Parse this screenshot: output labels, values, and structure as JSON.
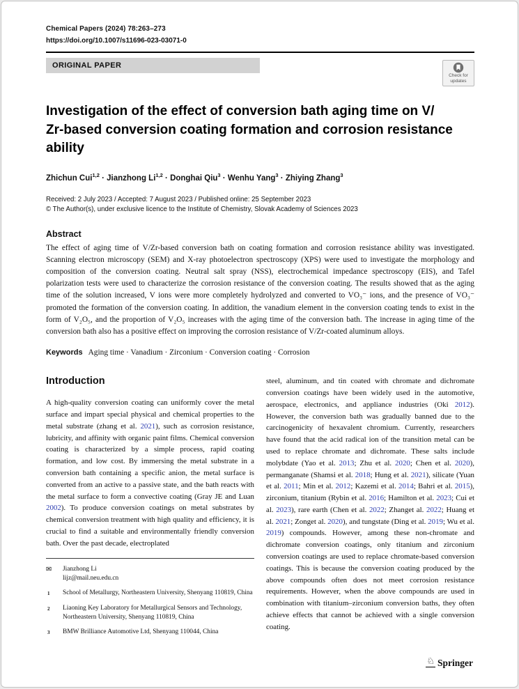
{
  "colors": {
    "link_blue": "#2b3cb0",
    "banner_gray": "#d2d2d2"
  },
  "header": {
    "journal_line": "Chemical Papers (2024) 78:263–273",
    "doi": "https://doi.org/10.1007/s11696-023-03071-0",
    "section_label": "ORIGINAL PAPER",
    "check_updates_line1": "Check for",
    "check_updates_line2": "updates"
  },
  "article": {
    "title_line1": "Investigation of the effect of conversion bath aging time on V/",
    "title_line2": "Zr-based conversion coating formation and corrosion resistance ability",
    "authors_segments": [
      {
        "t": "Zhichun Cui"
      },
      {
        "t": "1,2",
        "c": "sup"
      },
      {
        "t": " · "
      },
      {
        "t": "Jianzhong Li"
      },
      {
        "t": "1,2",
        "c": "sup"
      },
      {
        "t": " · "
      },
      {
        "t": "Donghai Qiu"
      },
      {
        "t": "3",
        "c": "sup"
      },
      {
        "t": " · "
      },
      {
        "t": "Wenhu Yang"
      },
      {
        "t": "3",
        "c": "sup"
      },
      {
        "t": " · "
      },
      {
        "t": "Zhiying Zhang"
      },
      {
        "t": "3",
        "c": "sup"
      }
    ],
    "received_line": "Received: 2 July 2023 / Accepted: 7 August 2023 / Published online: 25 September 2023",
    "copyright_line": "© The Author(s), under exclusive licence to the Institute of Chemistry, Slovak Academy of Sciences 2023"
  },
  "abstract": {
    "heading": "Abstract",
    "body": "The effect of aging time of V/Zr-based conversion bath on coating formation and corrosion resistance ability was investigated. Scanning electron microscopy (SEM) and X-ray photoelectron spectroscopy (XPS) were used to investigate the morphology and composition of the conversion coating. Neutral salt spray (NSS), electrochemical impedance spectroscopy (EIS), and Tafel polarization tests were used to characterize the corrosion resistance of the conversion coating. The results showed that as the aging time of the solution increased, V ions were more completely hydrolyzed and converted to VO₃⁻ ions, and the presence of VO₃⁻ promoted the formation of the conversion coating. In addition, the vanadium element in the conversion coating tends to exist in the form of V₂O₅, and the proportion of V₂O₅ increases with the aging time of the conversion bath. The increase in aging time of the conversion bath also has a positive effect on improving the corrosion resistance of V/Zr-coated aluminum alloys."
  },
  "keywords": {
    "label": "Keywords",
    "value": "Aging time · Vanadium · Zirconium · Conversion coating · Corrosion"
  },
  "introduction": {
    "heading": "Introduction",
    "left_segments": [
      {
        "t": "A high-quality conversion coating can uniformly cover the metal surface and impart special physical and chemical properties to the metal substrate (zhang et al. "
      },
      {
        "t": "2021",
        "c": "link"
      },
      {
        "t": "), such as corrosion resistance, lubricity, and affinity with organic paint films. Chemical conversion coating is characterized by a simple process, rapid coating formation, and low cost. By immersing the metal substrate in a conversion bath containing a specific anion, the metal surface is converted from an active to a passive state, and the bath reacts with the metal surface to form a convective coating (Gray JE and Luan "
      },
      {
        "t": "2002",
        "c": "link"
      },
      {
        "t": "). To produce conversion coatings on metal substrates by chemical conversion treatment with high quality and efficiency, it is crucial to find a suitable and environmentally friendly conversion bath. Over the past decade, electroplated"
      }
    ],
    "right_segments": [
      {
        "t": "steel, aluminum, and tin coated with chromate and dichromate conversion coatings have been widely used in the automotive, aerospace, electronics, and appliance industries (Oki "
      },
      {
        "t": "2012",
        "c": "link"
      },
      {
        "t": "). However, the conversion bath was gradually banned due to the carcinogenicity of hexavalent chromium. Currently, researchers have found that the acid radical ion of the transition metal can be used to replace chromate and dichromate. These salts include molybdate (Yao et al. "
      },
      {
        "t": "2013",
        "c": "link"
      },
      {
        "t": "; Zhu et al. "
      },
      {
        "t": "2020",
        "c": "link"
      },
      {
        "t": "; Chen et al. "
      },
      {
        "t": "2020",
        "c": "link"
      },
      {
        "t": "), permanganate (Shamsi et al. "
      },
      {
        "t": "2018",
        "c": "link"
      },
      {
        "t": "; Hung et al. "
      },
      {
        "t": "2021",
        "c": "link"
      },
      {
        "t": "), silicate (Yuan et al. "
      },
      {
        "t": "2011",
        "c": "link"
      },
      {
        "t": "; Min et al. "
      },
      {
        "t": "2012",
        "c": "link"
      },
      {
        "t": "; Kazemi et al. "
      },
      {
        "t": "2014",
        "c": "link"
      },
      {
        "t": "; Bahri et al. "
      },
      {
        "t": "2015",
        "c": "link"
      },
      {
        "t": "), zirconium, titanium (Rybin et al. "
      },
      {
        "t": "2016",
        "c": "link"
      },
      {
        "t": "; Hamilton et al. "
      },
      {
        "t": "2023",
        "c": "link"
      },
      {
        "t": "; Cui et al. "
      },
      {
        "t": "2023",
        "c": "link"
      },
      {
        "t": "), rare earth (Chen et al. "
      },
      {
        "t": "2022",
        "c": "link"
      },
      {
        "t": "; Zhanget al. "
      },
      {
        "t": "2022",
        "c": "link"
      },
      {
        "t": "; Huang et al. "
      },
      {
        "t": "2021",
        "c": "link"
      },
      {
        "t": "; Zonget al. "
      },
      {
        "t": "2020",
        "c": "link"
      },
      {
        "t": "), and tungstate (Ding et al. "
      },
      {
        "t": "2019",
        "c": "link"
      },
      {
        "t": "; Wu et al. "
      },
      {
        "t": "2019",
        "c": "link"
      },
      {
        "t": ") compounds. However, among these non-chromate and dichromate conversion coatings, only titanium and zirconium conversion coatings are used to replace chromate-based conversion coatings. This is because the conversion coating produced by the above compounds often does not meet corrosion resistance requirements. However, when the above compounds are used in combination with titanium–zirconium conversion baths, they often achieve effects that cannot be achieved with a single conversion coating."
      }
    ]
  },
  "footnotes": {
    "envelope_symbol": "✉",
    "correspondence_name": "Jianzhong Li",
    "correspondence_email": "lijz@mail.neu.edu.cn",
    "affiliations": [
      {
        "num": "1",
        "text": "School of Metallurgy, Northeastern University, Shenyang 110819, China"
      },
      {
        "num": "2",
        "text": "Liaoning Key Laboratory for Metallurgical Sensors and Technology, Northeastern University, Shenyang 110819, China"
      },
      {
        "num": "3",
        "text": "BMW Brilliance Automotive Ltd, Shenyang 110044, China"
      }
    ]
  },
  "footer": {
    "horse_symbol": "♘",
    "springer_label": "Springer"
  }
}
